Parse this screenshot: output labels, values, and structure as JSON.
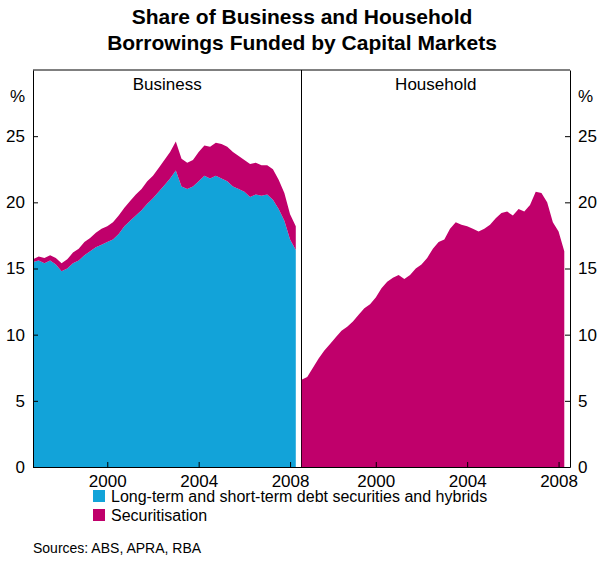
{
  "chart_data": {
    "type": "area",
    "title": "Share of Business and Household Borrowings Funded by Capital Markets",
    "y_label": "%",
    "source": "Sources: ABS, APRA, RBA",
    "stacked": true,
    "grid": false,
    "legend": "bottom",
    "xlim": [
      1996.75,
      2008.5
    ],
    "xticks": [
      2000,
      2004,
      2008
    ],
    "ylim": [
      0,
      30
    ],
    "yticks": [
      0,
      5,
      10,
      15,
      20,
      25
    ],
    "x": [
      1996.75,
      1997,
      1997.25,
      1997.5,
      1997.75,
      1998,
      1998.25,
      1998.5,
      1998.75,
      1999,
      1999.25,
      1999.5,
      1999.75,
      2000,
      2000.25,
      2000.5,
      2000.75,
      2001,
      2001.25,
      2001.5,
      2001.75,
      2002,
      2002.25,
      2002.5,
      2002.75,
      2003,
      2003.25,
      2003.5,
      2003.75,
      2004,
      2004.25,
      2004.5,
      2004.75,
      2005,
      2005.25,
      2005.5,
      2005.75,
      2006,
      2006.25,
      2006.5,
      2006.75,
      2007,
      2007.25,
      2007.5,
      2007.75,
      2008,
      2008.25
    ],
    "panels": [
      {
        "name": "Business",
        "series": [
          {
            "name": "Long-term and short-term debt securities and hybrids",
            "color": "#12a3d9",
            "values": [
              15.5,
              15.6,
              15.4,
              15.6,
              15.3,
              14.8,
              15.0,
              15.4,
              15.6,
              16.0,
              16.3,
              16.6,
              16.8,
              17.0,
              17.2,
              17.6,
              18.2,
              18.6,
              19.0,
              19.4,
              19.9,
              20.3,
              20.8,
              21.3,
              21.8,
              22.4,
              21.2,
              21.0,
              21.2,
              21.6,
              22.0,
              21.8,
              22.0,
              21.8,
              21.6,
              21.2,
              21.0,
              20.8,
              20.4,
              20.6,
              20.5,
              20.6,
              20.2,
              19.5,
              18.6,
              17.2,
              16.4
            ]
          },
          {
            "name": "Securitisation",
            "color": "#c0006b",
            "values": [
              0.2,
              0.3,
              0.4,
              0.4,
              0.5,
              0.6,
              0.7,
              0.8,
              0.9,
              1.0,
              1.0,
              1.1,
              1.2,
              1.2,
              1.3,
              1.4,
              1.4,
              1.5,
              1.6,
              1.6,
              1.7,
              1.7,
              1.8,
              1.9,
              2.0,
              2.2,
              2.1,
              2.0,
              2.0,
              2.2,
              2.3,
              2.4,
              2.5,
              2.6,
              2.6,
              2.6,
              2.5,
              2.4,
              2.5,
              2.4,
              2.3,
              2.2,
              2.3,
              2.2,
              2.1,
              1.9,
              1.8
            ]
          }
        ]
      },
      {
        "name": "Household",
        "series": [
          {
            "name": "Securitisation",
            "color": "#c0006b",
            "values": [
              6.6,
              6.8,
              7.5,
              8.2,
              8.8,
              9.3,
              9.8,
              10.3,
              10.6,
              11.0,
              11.5,
              12.0,
              12.3,
              12.8,
              13.5,
              14.0,
              14.3,
              14.5,
              14.2,
              14.5,
              15.0,
              15.3,
              15.8,
              16.5,
              17.0,
              17.2,
              18.0,
              18.5,
              18.3,
              18.2,
              18.0,
              17.8,
              18.0,
              18.3,
              18.8,
              19.2,
              19.3,
              19.0,
              19.5,
              19.3,
              19.8,
              20.8,
              20.7,
              20.0,
              18.5,
              17.8,
              16.3
            ]
          }
        ]
      }
    ]
  }
}
